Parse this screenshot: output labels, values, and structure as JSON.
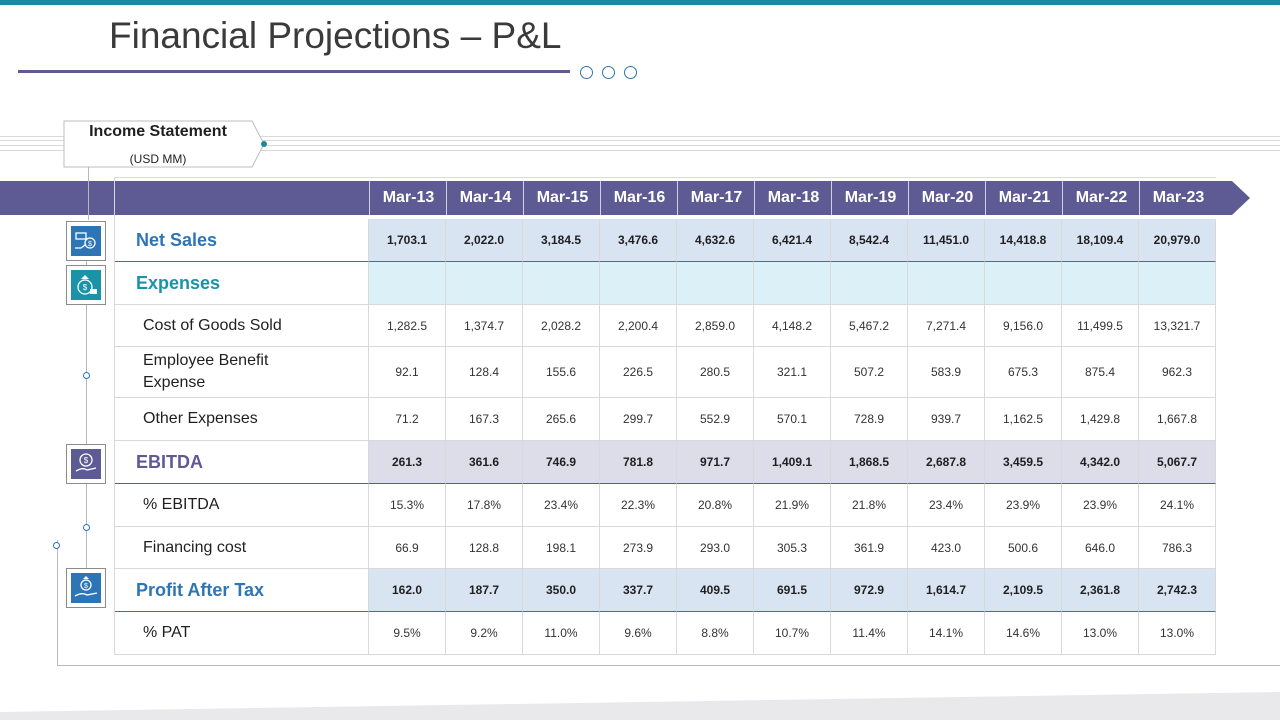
{
  "slide": {
    "title": "Financial Projections – P&L",
    "statement_label": "Income Statement",
    "statement_unit": "(USD MM)"
  },
  "colors": {
    "accent_teal": "#1b8a9a",
    "header_purple": "#5d5a94",
    "net_sales_blue": "#2e75b6",
    "expenses_teal": "#1a93a8",
    "ebitda_purple": "#5d5a94",
    "pat_blue": "#2e75b6"
  },
  "table": {
    "columns": [
      "Mar-13",
      "Mar-14",
      "Mar-15",
      "Mar-16",
      "Mar-17",
      "Mar-18",
      "Mar-19",
      "Mar-20",
      "Mar-21",
      "Mar-22",
      "Mar-23"
    ],
    "rows": [
      {
        "label": "Net Sales",
        "kind": "major",
        "style": "netsales",
        "icon": "money-hand-icon",
        "values": [
          "1,703.1",
          "2,022.0",
          "3,184.5",
          "3,476.6",
          "4,632.6",
          "6,421.4",
          "8,542.4",
          "11,451.0",
          "14,418.8",
          "18,109.4",
          "20,979.0"
        ]
      },
      {
        "label": "Expenses",
        "kind": "major",
        "style": "expenses",
        "icon": "money-bag-icon",
        "values": [
          "",
          "",
          "",
          "",
          "",
          "",
          "",
          "",
          "",
          "",
          ""
        ]
      },
      {
        "label": "Cost of Goods Sold",
        "kind": "minor",
        "style": "plain",
        "values": [
          "1,282.5",
          "1,374.7",
          "2,028.2",
          "2,200.4",
          "2,859.0",
          "4,148.2",
          "5,467.2",
          "7,271.4",
          "9,156.0",
          "11,499.5",
          "13,321.7"
        ]
      },
      {
        "label": "Employee Benefit Expense",
        "kind": "minor",
        "style": "plain",
        "values": [
          "92.1",
          "128.4",
          "155.6",
          "226.5",
          "280.5",
          "321.1",
          "507.2",
          "583.9",
          "675.3",
          "875.4",
          "962.3"
        ]
      },
      {
        "label": "Other Expenses",
        "kind": "minor",
        "style": "plain",
        "values": [
          "71.2",
          "167.3",
          "265.6",
          "299.7",
          "552.9",
          "570.1",
          "728.9",
          "939.7",
          "1,162.5",
          "1,429.8",
          "1,667.8"
        ]
      },
      {
        "label": "EBITDA",
        "kind": "major",
        "style": "ebitda",
        "icon": "dollar-coin-hand-icon",
        "values": [
          "261.3",
          "361.6",
          "746.9",
          "781.8",
          "971.7",
          "1,409.1",
          "1,868.5",
          "2,687.8",
          "3,459.5",
          "4,342.0",
          "5,067.7"
        ]
      },
      {
        "label": "% EBITDA",
        "kind": "minor",
        "style": "plain",
        "values": [
          "15.3%",
          "17.8%",
          "23.4%",
          "22.3%",
          "20.8%",
          "21.9%",
          "21.8%",
          "23.4%",
          "23.9%",
          "23.9%",
          "24.1%"
        ]
      },
      {
        "label": "Financing cost",
        "kind": "minor",
        "style": "plain",
        "values": [
          "66.9",
          "128.8",
          "198.1",
          "273.9",
          "293.0",
          "305.3",
          "361.9",
          "423.0",
          "500.6",
          "646.0",
          "786.3"
        ]
      },
      {
        "label": "Profit After Tax",
        "kind": "major",
        "style": "pat",
        "icon": "money-bag-hand-icon",
        "values": [
          "162.0",
          "187.7",
          "350.0",
          "337.7",
          "409.5",
          "691.5",
          "972.9",
          "1,614.7",
          "2,109.5",
          "2,361.8",
          "2,742.3"
        ]
      },
      {
        "label": "% PAT",
        "kind": "minor",
        "style": "plain",
        "values": [
          "9.5%",
          "9.2%",
          "11.0%",
          "9.6%",
          "8.8%",
          "10.7%",
          "11.4%",
          "14.1%",
          "14.6%",
          "13.0%",
          "13.0%"
        ]
      }
    ]
  }
}
